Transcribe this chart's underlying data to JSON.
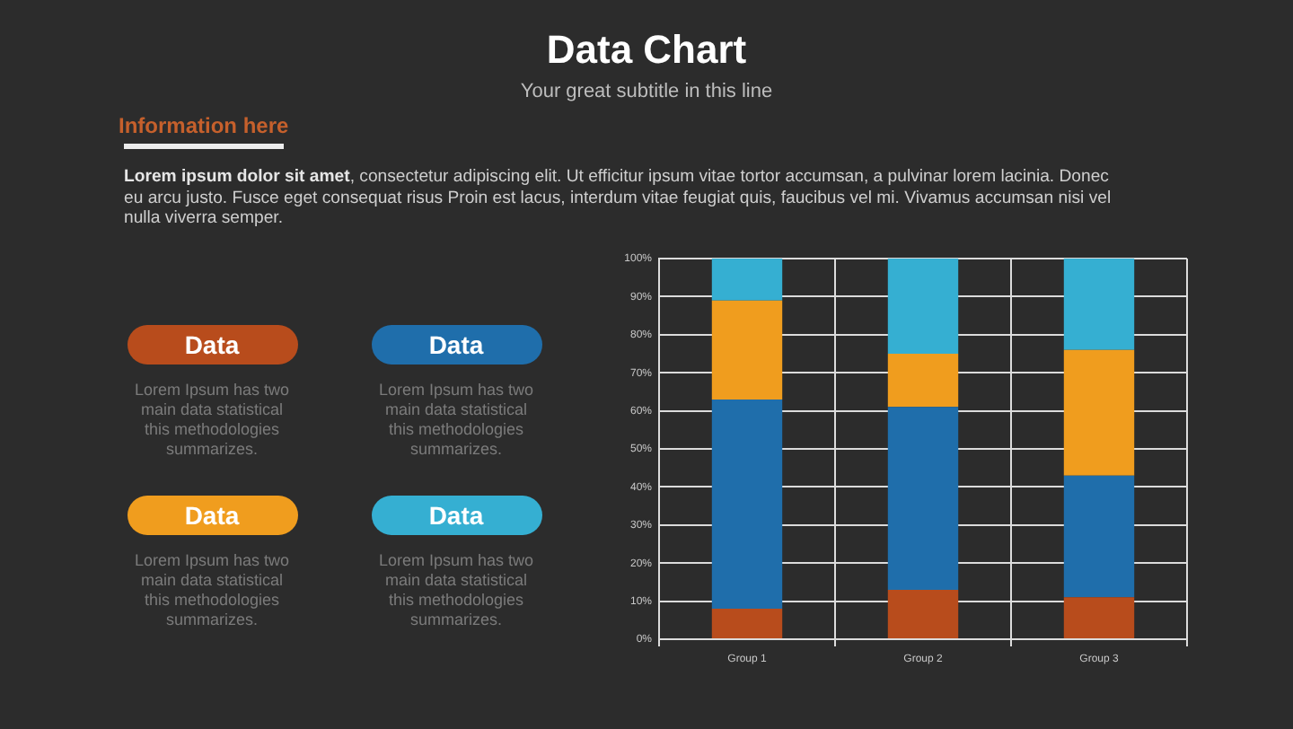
{
  "chart_data": {
    "type": "bar",
    "title": "Data Chart",
    "subtitle": "Your great subtitle in this line",
    "categories": [
      "Group 1",
      "Group 2",
      "Group 3"
    ],
    "stacked": true,
    "series": [
      {
        "name": "Data",
        "color": "#b84c1c",
        "values": [
          8,
          13,
          11
        ]
      },
      {
        "name": "Data",
        "color": "#1f6eab",
        "values": [
          55,
          48,
          32
        ]
      },
      {
        "name": "Data",
        "color": "#f09d1e",
        "values": [
          26,
          14,
          33
        ]
      },
      {
        "name": "Data",
        "color": "#35afd2",
        "values": [
          11,
          25,
          24
        ]
      }
    ],
    "ylim": [
      0,
      100
    ],
    "yticks": [
      {
        "value": 0,
        "label": "0%"
      },
      {
        "value": 10,
        "label": "10%"
      },
      {
        "value": 20,
        "label": "20%"
      },
      {
        "value": 30,
        "label": "30%"
      },
      {
        "value": 40,
        "label": "40%"
      },
      {
        "value": 50,
        "label": "50%"
      },
      {
        "value": 60,
        "label": "60%"
      },
      {
        "value": 70,
        "label": "70%"
      },
      {
        "value": 80,
        "label": "80%"
      },
      {
        "value": 90,
        "label": "90%"
      },
      {
        "value": 100,
        "label": "100%"
      }
    ],
    "grid": true,
    "legend": "left",
    "annotations": [
      "Information here",
      "Lorem ipsum dolor sit amet",
      ", consectetur adipiscing elit. Ut efficitur ipsum vitae tortor accumsan, a pulvinar lorem lacinia. Donec",
      "eu arcu justo. Fusce eget consequat risus Proin est lacus, interdum vitae feugiat quis, faucibus vel mi. Vivamus accumsan nisi vel",
      "nulla viverra semper.",
      "Lorem Ipsum has two main data statistical this methodologies summarizes.",
      "Lorem Ipsum has two main data statistical this methodologies summarizes.",
      "Lorem Ipsum has two main data statistical this methodologies summarizes.",
      "Lorem Ipsum has two main data statistical this methodologies summarizes."
    ]
  }
}
